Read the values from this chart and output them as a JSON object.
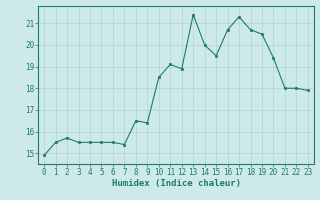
{
  "x": [
    0,
    1,
    2,
    3,
    4,
    5,
    6,
    7,
    8,
    9,
    10,
    11,
    12,
    13,
    14,
    15,
    16,
    17,
    18,
    19,
    20,
    21,
    22,
    23
  ],
  "y": [
    14.9,
    15.5,
    15.7,
    15.5,
    15.5,
    15.5,
    15.5,
    15.4,
    16.5,
    16.4,
    18.5,
    19.1,
    18.9,
    21.4,
    20.0,
    19.5,
    20.7,
    21.3,
    20.7,
    20.5,
    19.4,
    18.0,
    18.0,
    17.9
  ],
  "xlabel": "Humidex (Indice chaleur)",
  "ylim": [
    14.5,
    21.8
  ],
  "xlim": [
    -0.5,
    23.5
  ],
  "yticks": [
    15,
    16,
    17,
    18,
    19,
    20,
    21
  ],
  "xticks": [
    0,
    1,
    2,
    3,
    4,
    5,
    6,
    7,
    8,
    9,
    10,
    11,
    12,
    13,
    14,
    15,
    16,
    17,
    18,
    19,
    20,
    21,
    22,
    23
  ],
  "line_color": "#1d7a70",
  "marker_color": "#1d7a70",
  "bg_color": "#ceeae8",
  "grid_color": "#b0d5d2",
  "label_color": "#1d7a70",
  "tick_color": "#1d7a70",
  "spine_color": "#1d7a70",
  "label_fontsize": 6.5,
  "tick_fontsize": 5.5
}
